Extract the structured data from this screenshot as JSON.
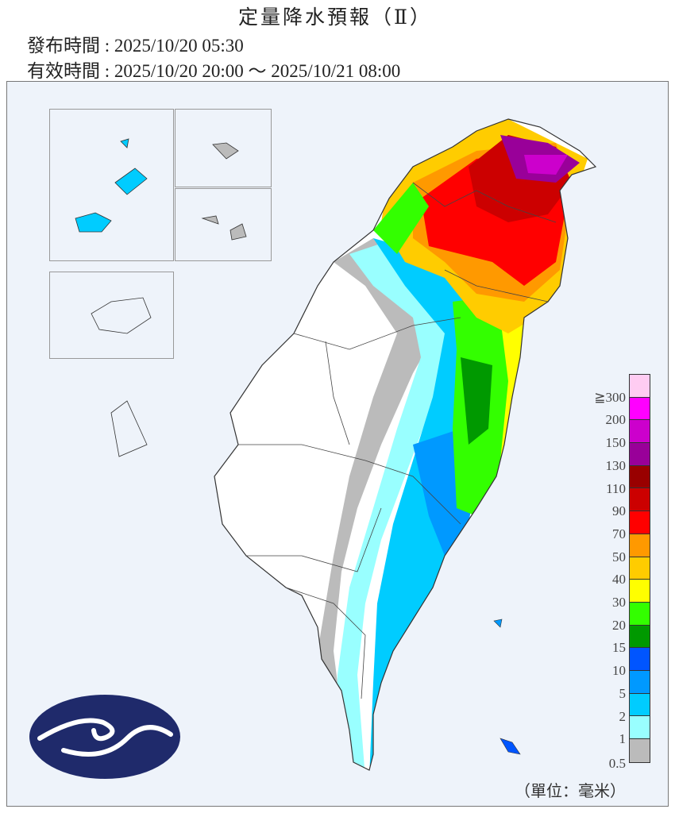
{
  "header": {
    "title": "定量降水預報（Ⅱ）",
    "issue_time": "發布時間 : 2025/10/20 05:30",
    "valid_time": "有效時間 : 2025/10/20 20:00 ～ 2025/10/21 08:00"
  },
  "legend": {
    "unit": "（單位：毫米）",
    "bins": [
      {
        "color": "#ffccf2",
        "label": ""
      },
      {
        "color": "#ff00ff",
        "label": "≧300"
      },
      {
        "color": "#cc00cc",
        "label": "200"
      },
      {
        "color": "#990099",
        "label": "150"
      },
      {
        "color": "#990000",
        "label": "130"
      },
      {
        "color": "#cc0000",
        "label": "110"
      },
      {
        "color": "#ff0000",
        "label": "90"
      },
      {
        "color": "#ff9900",
        "label": "70"
      },
      {
        "color": "#ffcc00",
        "label": "50"
      },
      {
        "color": "#ffff00",
        "label": "40"
      },
      {
        "color": "#33ff00",
        "label": "30"
      },
      {
        "color": "#009900",
        "label": "20"
      },
      {
        "color": "#0055ff",
        "label": "15"
      },
      {
        "color": "#0099ff",
        "label": "10"
      },
      {
        "color": "#00ccff",
        "label": "5"
      },
      {
        "color": "#99ffff",
        "label": "2"
      },
      {
        "color": "#bbbbbb",
        "label": "1"
      }
    ],
    "bottom_label": "0.5"
  },
  "logo": {
    "icon": "cwa-cloud-logo",
    "color": "#1f2a6b"
  }
}
